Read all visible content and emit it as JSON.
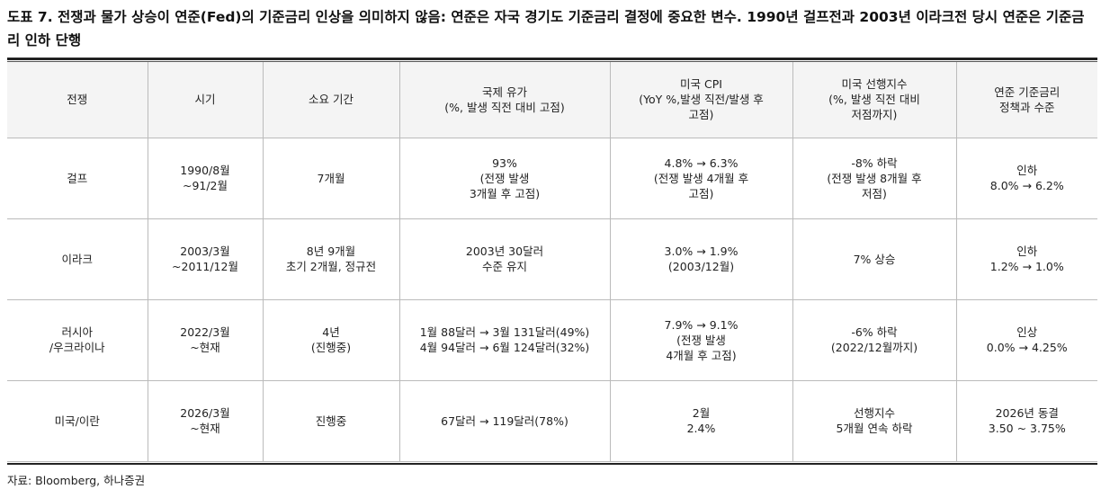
{
  "title": "도표 7. 전쟁과 물가 상승이 연준(Fed)의 기준금리 인상을 의미하지 않음: 연준은 자국 경기도 기준금리 결정에 중요한 변수. 1990년 걸프전과 2003년 이라크전 당시 연준은 기준금리 인하 단행",
  "table": {
    "headers": [
      [
        "전쟁"
      ],
      [
        "시기"
      ],
      [
        "소요 기간"
      ],
      [
        "국제 유가",
        "(%, 발생 직전 대비 고점)"
      ],
      [
        "미국 CPI",
        "(YoY %,발생 직전/발생 후",
        "고점)"
      ],
      [
        "미국 선행지수",
        "(%, 발생 직전 대비",
        "저점까지)"
      ],
      [
        "연준 기준금리",
        "정책과 수준"
      ]
    ],
    "rows": [
      [
        [
          "걸프"
        ],
        [
          "1990/8월",
          "~91/2월"
        ],
        [
          "7개월"
        ],
        [
          "93%",
          "(전쟁 발생",
          "3개월 후 고점)"
        ],
        [
          "4.8% → 6.3%",
          "(전쟁 발생 4개월 후",
          "고점)"
        ],
        [
          "-8% 하락",
          "(전쟁 발생 8개월 후",
          "저점)"
        ],
        [
          "인하",
          "8.0% → 6.2%"
        ]
      ],
      [
        [
          "이라크"
        ],
        [
          "2003/3월",
          "~2011/12월"
        ],
        [
          "8년 9개월",
          "초기 2개월, 정규전"
        ],
        [
          "2003년 30달러",
          "수준 유지"
        ],
        [
          "3.0% → 1.9%",
          "(2003/12월)"
        ],
        [
          "7% 상승"
        ],
        [
          "인하",
          "1.2% → 1.0%"
        ]
      ],
      [
        [
          "러시아",
          "/우크라이나"
        ],
        [
          "2022/3월",
          "~현재"
        ],
        [
          "4년",
          "(진행중)"
        ],
        [
          "1월 88달러 → 3월 131달러(49%)",
          "4월 94달러 → 6월 124달러(32%)"
        ],
        [
          "7.9% → 9.1%",
          "(전쟁 발생",
          "4개월 후 고점)"
        ],
        [
          "-6% 하락",
          "(2022/12월까지)"
        ],
        [
          "인상",
          "0.0% → 4.25%"
        ]
      ],
      [
        [
          "미국/이란"
        ],
        [
          "2026/3월",
          "~현재"
        ],
        [
          "진행중"
        ],
        [
          "67달러 → 119달러(78%)"
        ],
        [
          "2월",
          "2.4%"
        ],
        [
          "선행지수",
          "5개월 연속 하락"
        ],
        [
          "2026년 동결",
          "3.50 ~ 3.75%"
        ]
      ]
    ]
  },
  "source": "자료: Bloomberg, 하나증권"
}
